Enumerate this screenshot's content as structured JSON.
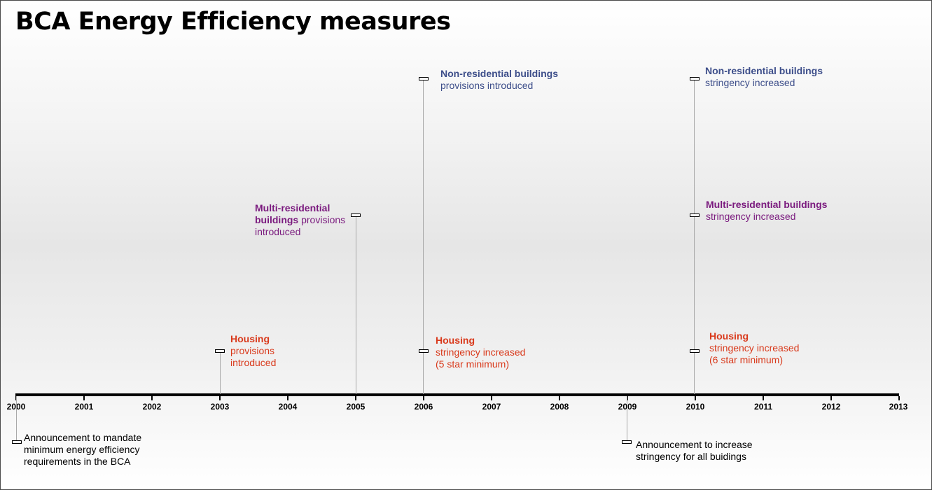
{
  "title": "BCA Energy Efficiency measures",
  "axis": {
    "years": [
      "2000",
      "2001",
      "2002",
      "2003",
      "2004",
      "2005",
      "2006",
      "2007",
      "2008",
      "2009",
      "2010",
      "2011",
      "2012",
      "2013"
    ]
  },
  "events": {
    "announce_2000": {
      "text": "Announcement to mandate minimum energy efficiency requirements in the BCA"
    },
    "housing_2003": {
      "title": "Housing",
      "body": "provisions introduced"
    },
    "multi_2005": {
      "title": "Multi-residential buildings",
      "body": "provisions introduced"
    },
    "nonres_2006": {
      "title": "Non-residential buildings",
      "body": "provisions introduced"
    },
    "housing_2006": {
      "title": "Housing",
      "body1": "stringency increased",
      "body2": "(5 star minimum)"
    },
    "announce_2009": {
      "text": "Announcement to increase stringency for all buidings"
    },
    "nonres_2010": {
      "title": "Non-residential buildings",
      "body": "stringency increased"
    },
    "multi_2010": {
      "title": "Multi-residential buildings",
      "body": "stringency increased"
    },
    "housing_2010": {
      "title": "Housing",
      "body1": "stringency increased",
      "body2": "(6 star minimum)"
    }
  },
  "colors": {
    "housing": "#d9391b",
    "nonresidential": "#3d4e8a",
    "multiresidential": "#7a1a7e",
    "announcement": "#000000"
  }
}
